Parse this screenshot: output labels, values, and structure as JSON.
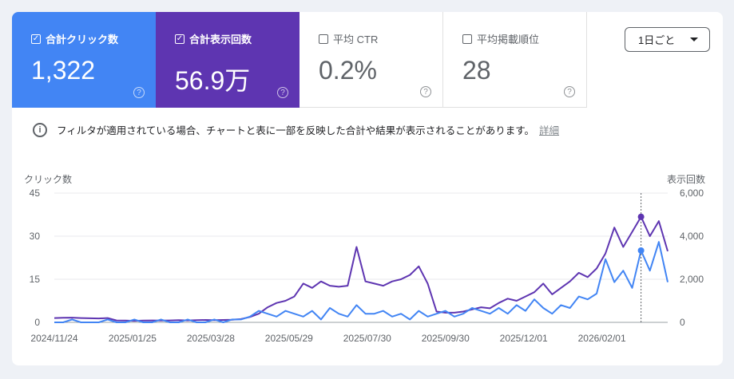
{
  "metrics": [
    {
      "label": "合計クリック数",
      "value": "1,322",
      "checked": true,
      "color": "#4285f4"
    },
    {
      "label": "合計表示回数",
      "value": "56.9万",
      "checked": true,
      "color": "#5e35b1"
    },
    {
      "label": "平均 CTR",
      "value": "0.2%",
      "checked": false
    },
    {
      "label": "平均掲載順位",
      "value": "28",
      "checked": false
    }
  ],
  "help_icon": "?",
  "granularity": "1日ごと",
  "info": {
    "text": "フィルタが適用されている場合、チャートと表に一部を反映した合計や結果が表示されることがあります。",
    "link": "詳細"
  },
  "chart_data": {
    "type": "line",
    "left_axis_label": "クリック数",
    "right_axis_label": "表示回数",
    "left_ylim": [
      0,
      45
    ],
    "right_ylim": [
      0,
      6000
    ],
    "left_ticks": [
      "0",
      "15",
      "30",
      "45"
    ],
    "right_ticks": [
      "0",
      "2,000",
      "4,000",
      "6,000"
    ],
    "x_start": "2024/11/24",
    "x_step_days": 7,
    "x_ticks": [
      "2024/11/24",
      "2025/01/25",
      "2025/03/28",
      "2025/05/29",
      "2025/07/30",
      "2025/09/30",
      "2025/12/01",
      "2026/02/01"
    ],
    "series": [
      {
        "name": "合計表示回数",
        "axis": "right",
        "color": "#5e35b1",
        "values": [
          200,
          210,
          220,
          200,
          190,
          180,
          200,
          90,
          80,
          70,
          80,
          90,
          80,
          90,
          100,
          90,
          100,
          110,
          100,
          110,
          120,
          150,
          250,
          400,
          700,
          900,
          1000,
          1200,
          1800,
          1600,
          1900,
          1700,
          1650,
          1700,
          3500,
          1900,
          1800,
          1700,
          1900,
          2000,
          2200,
          2600,
          1800,
          500,
          450,
          450,
          500,
          600,
          700,
          650,
          900,
          1100,
          1000,
          1200,
          1400,
          1800,
          1300,
          1600,
          1900,
          2300,
          2100,
          2500,
          3200,
          4400,
          3500,
          4200,
          4900,
          4000,
          4700,
          3300
        ]
      },
      {
        "name": "合計クリック数",
        "axis": "left",
        "color": "#4285f4",
        "values": [
          0,
          0,
          1,
          0,
          0,
          0,
          1,
          0,
          0,
          1,
          0,
          0,
          1,
          0,
          0,
          1,
          0,
          0,
          1,
          0,
          1,
          1,
          2,
          4,
          3,
          2,
          4,
          3,
          2,
          4,
          1,
          5,
          3,
          2,
          6,
          3,
          3,
          4,
          2,
          3,
          1,
          4,
          2,
          3,
          4,
          2,
          3,
          5,
          4,
          3,
          5,
          3,
          6,
          4,
          8,
          5,
          3,
          6,
          5,
          9,
          8,
          10,
          22,
          14,
          18,
          12,
          25,
          18,
          28,
          14
        ]
      }
    ],
    "hover_index": 66
  }
}
